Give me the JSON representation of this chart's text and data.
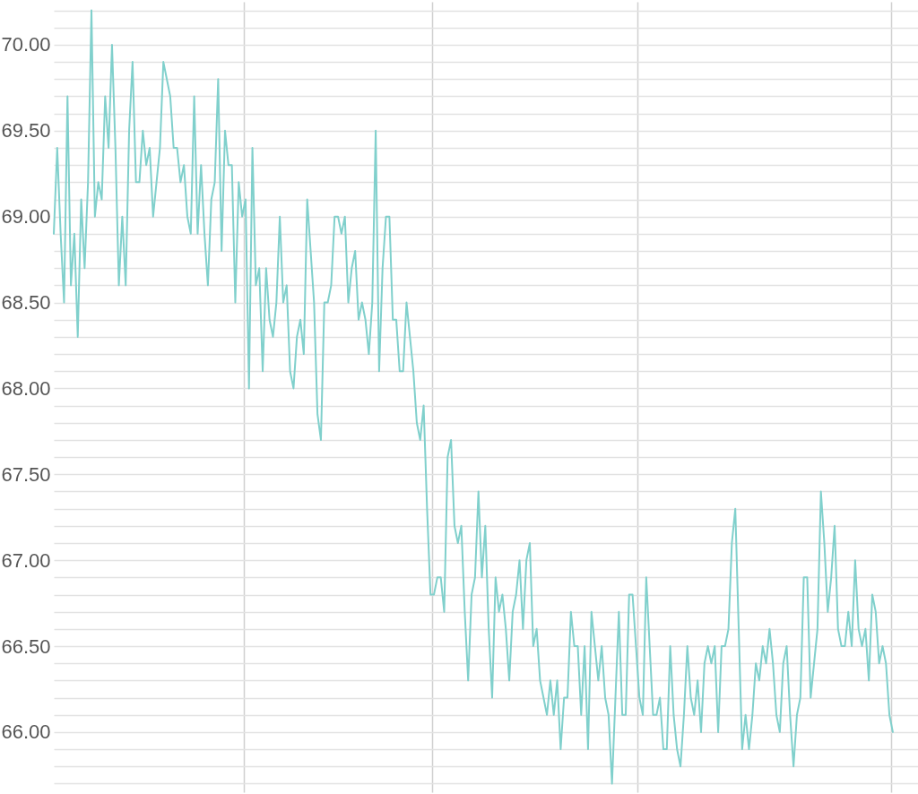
{
  "chart_data": {
    "type": "line",
    "color": "#80d0cc",
    "grid": true,
    "tick_labels": "y",
    "categories": [
      null,
      null,
      null,
      null,
      null,
      null,
      null,
      null,
      null,
      null,
      null,
      null,
      null,
      null,
      null,
      null,
      null,
      null,
      null,
      null,
      null,
      null,
      null,
      null,
      null,
      null,
      null,
      null,
      null,
      null,
      null,
      null,
      null,
      null,
      null,
      null,
      null,
      null,
      null,
      null,
      null,
      null,
      null,
      null,
      null,
      null,
      null,
      null,
      null,
      null,
      null,
      null,
      null,
      null,
      null,
      null,
      null,
      null,
      null,
      null,
      null,
      null,
      null,
      null,
      null,
      null,
      null,
      null,
      null,
      null,
      null,
      null,
      null,
      null,
      null,
      null,
      null,
      null,
      null,
      null,
      null,
      null,
      null,
      null,
      null,
      null,
      null,
      null,
      null,
      null,
      null,
      null,
      null,
      null,
      null,
      null,
      null,
      null,
      null,
      null,
      null,
      null,
      null,
      null,
      null,
      null,
      null,
      null,
      null,
      null,
      null,
      null,
      null,
      null,
      null,
      null,
      null,
      null,
      null,
      null,
      null,
      null,
      null,
      null,
      null,
      null,
      null,
      null,
      null,
      null,
      null,
      null,
      null,
      null,
      null,
      null,
      null,
      null,
      null,
      null,
      null,
      null,
      null,
      null,
      null,
      null,
      null,
      null,
      null,
      null,
      null,
      null,
      null,
      null,
      null,
      null,
      null,
      null,
      null,
      null,
      null,
      null,
      null,
      null,
      null,
      null,
      null,
      null,
      null,
      null,
      null,
      null,
      null,
      null,
      null,
      null,
      null,
      null,
      null,
      null,
      null,
      null,
      null,
      null,
      null,
      null,
      null,
      null,
      null,
      null,
      null,
      null,
      null,
      null,
      null,
      null,
      null,
      null,
      null,
      null,
      null,
      null,
      null,
      null,
      null,
      null,
      null,
      null,
      null,
      null,
      null,
      null,
      null,
      null,
      null,
      null,
      null,
      null,
      null,
      null,
      null,
      null,
      null,
      null,
      null,
      null,
      null,
      null,
      null,
      null,
      null,
      null,
      null,
      null,
      null,
      null,
      null,
      null,
      null,
      null,
      null,
      null,
      null,
      null,
      null,
      null
    ],
    "ylim": [
      65.65,
      70.25
    ],
    "yticks": [
      {
        "value": 65.7,
        "label": null
      },
      {
        "value": 65.8,
        "label": null
      },
      {
        "value": 65.9,
        "label": null
      },
      {
        "value": 66,
        "label": "66.00"
      },
      {
        "value": 66.1,
        "label": null
      },
      {
        "value": 66.2,
        "label": null
      },
      {
        "value": 66.3,
        "label": null
      },
      {
        "value": 66.4,
        "label": null
      },
      {
        "value": 66.5,
        "label": "66.50"
      },
      {
        "value": 66.6,
        "label": null
      },
      {
        "value": 66.7,
        "label": null
      },
      {
        "value": 66.8,
        "label": null
      },
      {
        "value": 66.9,
        "label": null
      },
      {
        "value": 67,
        "label": "67.00"
      },
      {
        "value": 67.1,
        "label": null
      },
      {
        "value": 67.2,
        "label": null
      },
      {
        "value": 67.3,
        "label": null
      },
      {
        "value": 67.4,
        "label": null
      },
      {
        "value": 67.5,
        "label": "67.50"
      },
      {
        "value": 67.6,
        "label": null
      },
      {
        "value": 67.7,
        "label": null
      },
      {
        "value": 67.8,
        "label": null
      },
      {
        "value": 67.9,
        "label": null
      },
      {
        "value": 68,
        "label": "68.00"
      },
      {
        "value": 68.1,
        "label": null
      },
      {
        "value": 68.2,
        "label": null
      },
      {
        "value": 68.3,
        "label": null
      },
      {
        "value": 68.4,
        "label": null
      },
      {
        "value": 68.5,
        "label": "68.50"
      },
      {
        "value": 68.6,
        "label": null
      },
      {
        "value": 68.7,
        "label": null
      },
      {
        "value": 68.8,
        "label": null
      },
      {
        "value": 68.9,
        "label": null
      },
      {
        "value": 69,
        "label": "69.00"
      },
      {
        "value": 69.1,
        "label": null
      },
      {
        "value": 69.2,
        "label": null
      },
      {
        "value": 69.3,
        "label": null
      },
      {
        "value": 69.4,
        "label": null
      },
      {
        "value": 69.5,
        "label": "69.50"
      },
      {
        "value": 69.6,
        "label": null
      },
      {
        "value": 69.7,
        "label": null
      },
      {
        "value": 69.8,
        "label": null
      },
      {
        "value": 69.9,
        "label": null
      },
      {
        "value": 70,
        "label": "70.00"
      },
      {
        "value": 70.1,
        "label": null
      },
      {
        "value": 70.2,
        "label": null
      }
    ],
    "values": [
      68.9,
      69.4,
      68.9,
      68.5,
      69.7,
      68.6,
      68.9,
      68.3,
      69.1,
      68.7,
      69.2,
      70.2,
      69.0,
      69.2,
      69.1,
      69.7,
      69.4,
      70.0,
      69.4,
      68.6,
      69.0,
      68.6,
      69.5,
      69.9,
      69.2,
      69.2,
      69.5,
      69.3,
      69.4,
      69.0,
      69.2,
      69.4,
      69.9,
      69.8,
      69.7,
      69.4,
      69.4,
      69.2,
      69.3,
      69.0,
      68.9,
      69.7,
      68.9,
      69.3,
      68.9,
      68.6,
      69.1,
      69.2,
      69.8,
      68.8,
      69.5,
      69.3,
      69.3,
      68.5,
      69.2,
      69.0,
      69.1,
      68.0,
      69.4,
      68.6,
      68.7,
      68.1,
      68.7,
      68.4,
      68.3,
      68.5,
      69.0,
      68.5,
      68.6,
      68.1,
      68.0,
      68.3,
      68.4,
      68.2,
      69.1,
      68.8,
      68.5,
      67.85,
      67.7,
      68.5,
      68.5,
      68.6,
      69.0,
      69.0,
      68.9,
      69.0,
      68.5,
      68.7,
      68.8,
      68.4,
      68.5,
      68.4,
      68.2,
      68.5,
      69.5,
      68.1,
      68.7,
      69.0,
      69.0,
      68.4,
      68.4,
      68.1,
      68.1,
      68.5,
      68.3,
      68.1,
      67.8,
      67.7,
      67.9,
      67.3,
      66.8,
      66.8,
      66.9,
      66.9,
      66.7,
      67.6,
      67.7,
      67.2,
      67.1,
      67.2,
      66.7,
      66.3,
      66.8,
      66.9,
      67.4,
      66.9,
      67.2,
      66.6,
      66.2,
      66.9,
      66.7,
      66.8,
      66.6,
      66.3,
      66.7,
      66.8,
      67.0,
      66.6,
      67.0,
      67.1,
      66.5,
      66.6,
      66.3,
      66.2,
      66.1,
      66.3,
      66.1,
      66.3,
      65.9,
      66.2,
      66.2,
      66.7,
      66.5,
      66.5,
      66.1,
      66.5,
      65.9,
      66.7,
      66.5,
      66.3,
      66.5,
      66.2,
      66.1,
      65.7,
      66.2,
      66.7,
      66.1,
      66.1,
      66.8,
      66.8,
      66.5,
      66.2,
      66.1,
      66.9,
      66.5,
      66.1,
      66.1,
      66.2,
      65.9,
      65.9,
      66.5,
      66.1,
      65.9,
      65.8,
      66.1,
      66.5,
      66.2,
      66.1,
      66.3,
      66.0,
      66.4,
      66.5,
      66.4,
      66.5,
      66.0,
      66.5,
      66.5,
      66.6,
      67.1,
      67.3,
      66.6,
      65.9,
      66.1,
      65.9,
      66.1,
      66.4,
      66.3,
      66.5,
      66.4,
      66.6,
      66.4,
      66.1,
      66.0,
      66.4,
      66.5,
      66.1,
      65.8,
      66.1,
      66.2,
      66.9,
      66.9,
      66.2,
      66.4,
      66.6,
      67.4,
      67.1,
      66.7,
      66.9,
      67.2,
      66.6,
      66.5,
      66.5,
      66.7,
      66.5,
      67.0,
      66.6,
      66.5,
      66.6,
      66.3,
      66.8,
      66.7,
      66.4,
      66.5,
      66.4,
      66.1,
      66.0
    ]
  }
}
